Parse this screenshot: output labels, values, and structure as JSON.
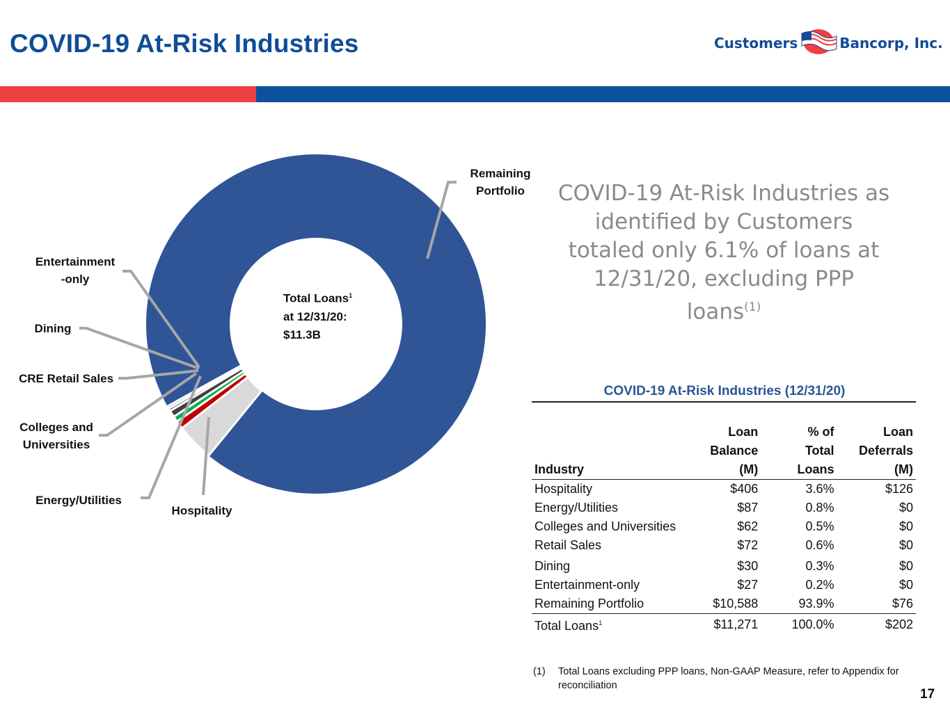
{
  "header": {
    "title": "COVID-19 At-Risk Industries",
    "logo_left": "Customers",
    "logo_right": "Bancorp, Inc.",
    "colors": {
      "title": "#0f4d96",
      "bar_red": "#ee3f42",
      "bar_blue": "#0b519d"
    }
  },
  "chart_data": {
    "type": "pie",
    "donut": true,
    "unit": "$M",
    "slices": [
      {
        "label": "Remaining Portfolio",
        "value": 10588,
        "color": "#2f5597"
      },
      {
        "label": "Hospitality",
        "value": 406,
        "color": "#d9d9d9"
      },
      {
        "label": "Energy/Utilities",
        "value": 87,
        "color": "#c00000"
      },
      {
        "label": "Colleges and Universities",
        "value": 62,
        "color": "#00b050"
      },
      {
        "label": "CRE Retail Sales",
        "value": 72,
        "color": "#404040"
      },
      {
        "label": "Dining",
        "value": 30,
        "color": "#595959"
      },
      {
        "label": "Entertainment-only",
        "value": 27,
        "color": "#a6a6a6"
      }
    ],
    "callout_labels": {
      "remaining": [
        "Remaining",
        "Portfolio"
      ],
      "entertainment": [
        "Entertainment",
        "-only"
      ],
      "dining": "Dining",
      "cre_retail": "CRE Retail Sales",
      "colleges": [
        "Colleges and",
        "Universities"
      ],
      "energy": "Energy/Utilities",
      "hospitality": "Hospitality"
    },
    "center_label": {
      "line1": "Total Loans",
      "sup": "1",
      "line2": "at 12/31/20:",
      "line3": "$11.3B"
    }
  },
  "callout": {
    "text": "COVID-19 At-Risk Industries as identified by Customers totaled only 6.1% of loans at 12/31/20, excluding PPP loans",
    "sup": "(1)"
  },
  "table": {
    "title": "COVID-19 At-Risk Industries (12/31/20)",
    "headers": {
      "industry": "Industry",
      "balance": [
        "Loan",
        "Balance",
        "(M)"
      ],
      "pct": [
        "% of",
        "Total",
        "Loans"
      ],
      "deferrals": [
        "Loan",
        "Deferrals",
        "(M)"
      ]
    },
    "rows": [
      [
        "Hospitality",
        "$406",
        "3.6%",
        "$126"
      ],
      [
        "Energy/Utilities",
        "$87",
        "0.8%",
        "$0"
      ],
      [
        "Colleges and Universities",
        "$62",
        "0.5%",
        "$0"
      ],
      [
        "Retail Sales",
        "$72",
        "0.6%",
        "$0"
      ],
      [
        "Dining",
        "$30",
        "0.3%",
        "$0"
      ],
      [
        "Entertainment-only",
        "$27",
        "0.2%",
        "$0"
      ],
      [
        "Remaining Portfolio",
        "$10,588",
        "93.9%",
        "$76"
      ]
    ],
    "total": {
      "label": "Total Loans",
      "sup": "1",
      "balance": "$11,271",
      "pct": "100.0%",
      "deferrals": "$202"
    }
  },
  "footnote": {
    "mark": "(1)",
    "text": "Total Loans excluding PPP loans, Non-GAAP Measure, refer to Appendix for reconciliation"
  },
  "page_number": "17"
}
